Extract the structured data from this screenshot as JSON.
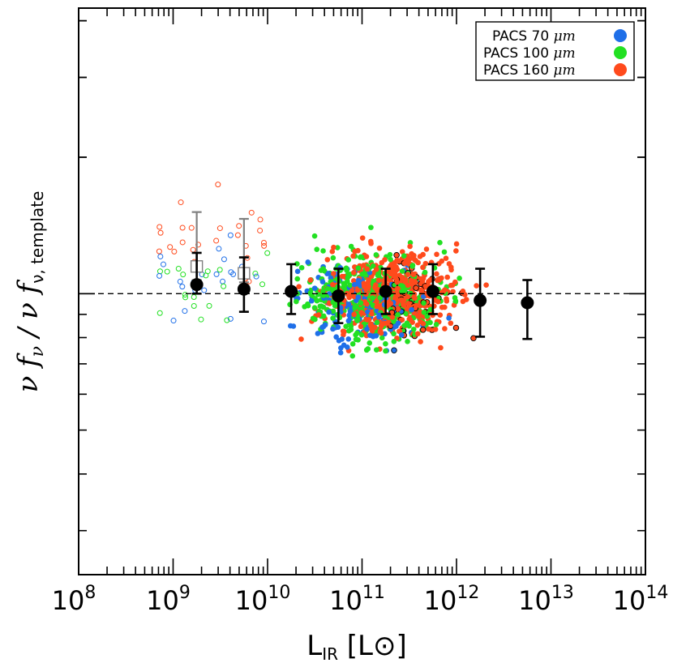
{
  "chart_data": {
    "type": "scatter",
    "title": "",
    "xlabel": "L",
    "xlabel_sub": "IR",
    "xlabel_unit_open": " [L",
    "xlabel_unit_sym": "⊙",
    "xlabel_unit_close": "]",
    "ylabel_main": "ν f",
    "ylabel_sub1": "ν",
    "ylabel_mid": " / ν f",
    "ylabel_sub2": "ν, template",
    "x_scale": "log",
    "xlim_exp": [
      8,
      14
    ],
    "x_tick_labels": [
      {
        "exp": 8,
        "base": "10",
        "sup": "8"
      },
      {
        "exp": 9,
        "base": "10",
        "sup": "9"
      },
      {
        "exp": 10,
        "base": "10",
        "sup": "10"
      },
      {
        "exp": 11,
        "base": "10",
        "sup": "11"
      },
      {
        "exp": 12,
        "base": "10",
        "sup": "12"
      },
      {
        "exp": 13,
        "base": "10",
        "sup": "13"
      },
      {
        "exp": 14,
        "base": "10",
        "sup": "14"
      }
    ],
    "y_scale": "log",
    "ylim_log": [
      -0.62,
      0.63
    ],
    "y_reference": 0,
    "y_tick_labels_visible": false,
    "legend": {
      "position": "top-right",
      "entries": [
        {
          "label": "PACS  70 ",
          "unit": "μm",
          "color": "#1f6fe8"
        },
        {
          "label": "PACS 100 ",
          "unit": "μm",
          "color": "#22e022"
        },
        {
          "label": "PACS 160 ",
          "unit": "μm",
          "color": "#ff4a1c"
        }
      ]
    },
    "binned_means": [
      {
        "logL": 9.25,
        "logR": 0.02,
        "err_lo": -0.02,
        "err_hi": 0.07
      },
      {
        "logL": 9.75,
        "logR": 0.01,
        "err_lo": -0.05,
        "err_hi": 0.07
      },
      {
        "logL": 10.25,
        "logR": 0.005,
        "err_lo": -0.05,
        "err_hi": 0.06
      },
      {
        "logL": 10.75,
        "logR": -0.005,
        "err_lo": -0.06,
        "err_hi": 0.06
      },
      {
        "logL": 11.25,
        "logR": 0.005,
        "err_lo": -0.05,
        "err_hi": 0.05
      },
      {
        "logL": 11.75,
        "logR": 0.005,
        "err_lo": -0.05,
        "err_hi": 0.06
      },
      {
        "logL": 12.25,
        "logR": -0.015,
        "err_lo": -0.08,
        "err_hi": 0.07
      },
      {
        "logL": 12.75,
        "logR": -0.02,
        "err_lo": -0.08,
        "err_hi": 0.05
      }
    ],
    "lowL_means": [
      {
        "logL": 9.25,
        "logR": 0.06,
        "err_lo": -0.03,
        "err_hi": 0.12
      },
      {
        "logL": 9.75,
        "logR": 0.045,
        "err_lo": -0.02,
        "err_hi": 0.12
      }
    ]
  }
}
